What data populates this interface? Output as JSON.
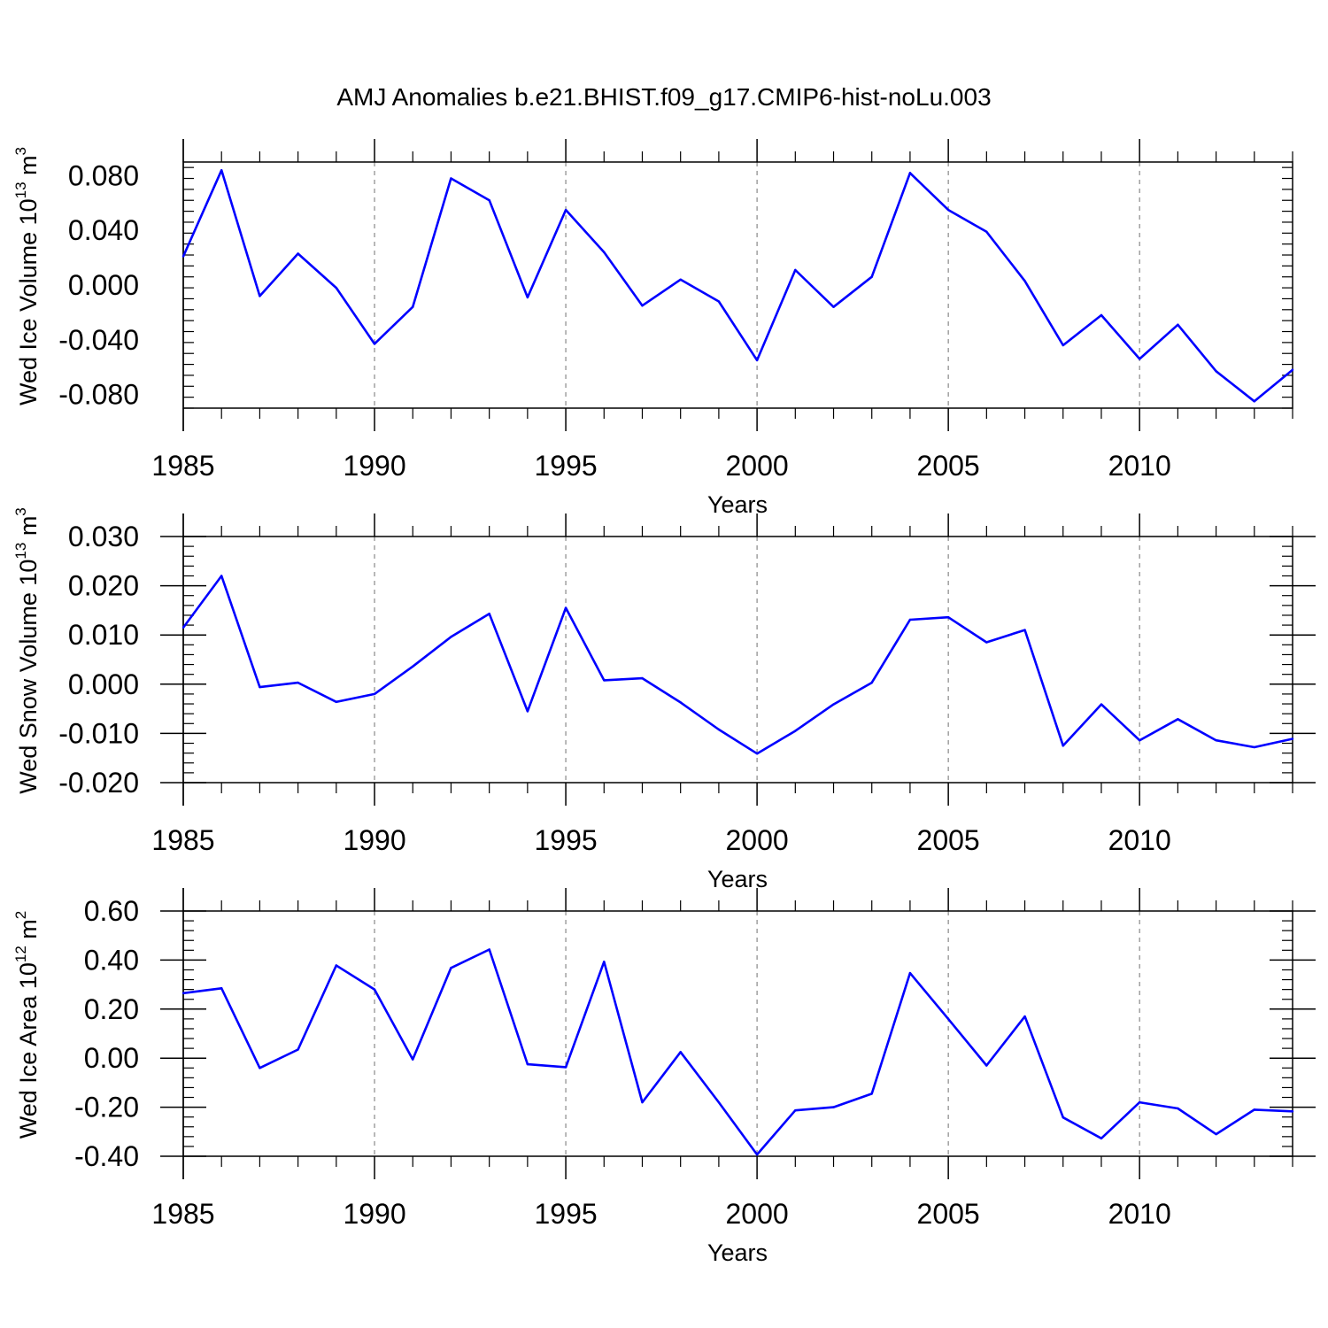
{
  "title": "AMJ Anomalies b.e21.BHIST.f09_g17.CMIP6-hist-noLu.003",
  "line_color": "#0000ff",
  "chart_data": [
    {
      "type": "line",
      "title": "AMJ Anomalies b.e21.BHIST.f09_g17.CMIP6-hist-noLu.003",
      "xlabel": "Years",
      "ylabel": {
        "main": "Wed Ice Volume 10",
        "exp": "13",
        "unit": " m",
        "unit_exp": "3"
      },
      "xlim": [
        1985,
        2014
      ],
      "ylim": [
        -0.09,
        0.09
      ],
      "yticks": [
        0.08,
        0.04,
        0.0,
        -0.04,
        -0.08
      ],
      "ytick_labels": [
        "0.080",
        "0.040",
        "0.000",
        "-0.040",
        "-0.080"
      ],
      "xticks": [
        1985,
        1990,
        1995,
        2000,
        2005,
        2010
      ],
      "xtick_labels": [
        "1985",
        "1990",
        "1995",
        "2000",
        "2005",
        "2010"
      ],
      "grid": "vertical dashed at major years",
      "x": [
        1985,
        1986,
        1987,
        1988,
        1989,
        1990,
        1991,
        1992,
        1993,
        1994,
        1995,
        1996,
        1997,
        1998,
        1999,
        2000,
        2001,
        2002,
        2003,
        2004,
        2005,
        2006,
        2007,
        2008,
        2009,
        2010,
        2011,
        2012,
        2013,
        2014
      ],
      "series": [
        {
          "values": [
            0.021,
            0.084,
            -0.008,
            0.023,
            -0.002,
            -0.043,
            -0.016,
            0.078,
            0.062,
            -0.009,
            0.055,
            0.024,
            -0.015,
            0.004,
            -0.012,
            -0.055,
            0.011,
            -0.016,
            0.006,
            0.082,
            0.055,
            0.039,
            0.003,
            -0.044,
            -0.022,
            -0.054,
            -0.029,
            -0.063,
            -0.085,
            -0.062
          ]
        }
      ]
    },
    {
      "type": "line",
      "xlabel": "Years",
      "ylabel": {
        "main": "Wed Snow Volume 10",
        "exp": "13",
        "unit": " m",
        "unit_exp": "3"
      },
      "xlim": [
        1985,
        2014
      ],
      "ylim": [
        -0.02,
        0.03
      ],
      "yticks": [
        0.03,
        0.02,
        0.01,
        0.0,
        -0.01,
        -0.02
      ],
      "ytick_labels": [
        "0.030",
        "0.020",
        "0.010",
        "0.000",
        "-0.010",
        "-0.020"
      ],
      "xticks": [
        1985,
        1990,
        1995,
        2000,
        2005,
        2010
      ],
      "xtick_labels": [
        "1985",
        "1990",
        "1995",
        "2000",
        "2005",
        "2010"
      ],
      "grid": "vertical dashed at major years",
      "x": [
        1985,
        1986,
        1987,
        1988,
        1989,
        1990,
        1991,
        1992,
        1993,
        1994,
        1995,
        1996,
        1997,
        1998,
        1999,
        2000,
        2001,
        2002,
        2003,
        2004,
        2005,
        2006,
        2007,
        2008,
        2009,
        2010,
        2011,
        2012,
        2013,
        2014
      ],
      "series": [
        {
          "values": [
            0.0115,
            0.022,
            -0.0006,
            0.0003,
            -0.0036,
            -0.002,
            0.0036,
            0.0096,
            0.0143,
            -0.0055,
            0.0155,
            0.0008,
            0.0012,
            -0.0037,
            -0.0092,
            -0.0141,
            -0.0095,
            -0.0041,
            0.0003,
            0.0131,
            0.0136,
            0.0085,
            0.011,
            -0.0125,
            -0.0041,
            -0.0114,
            -0.0071,
            -0.0114,
            -0.0128,
            -0.0111
          ]
        }
      ]
    },
    {
      "type": "line",
      "xlabel": "Years",
      "ylabel": {
        "main": "Wed Ice Area 10",
        "exp": "12",
        "unit": " m",
        "unit_exp": "2"
      },
      "xlim": [
        1985,
        2014
      ],
      "ylim": [
        -0.4,
        0.6
      ],
      "yticks": [
        0.6,
        0.4,
        0.2,
        0.0,
        -0.2,
        -0.4
      ],
      "ytick_labels": [
        "0.60",
        "0.40",
        "0.20",
        "0.00",
        "-0.20",
        "-0.40"
      ],
      "xticks": [
        1985,
        1990,
        1995,
        2000,
        2005,
        2010
      ],
      "xtick_labels": [
        "1985",
        "1990",
        "1995",
        "2000",
        "2005",
        "2010"
      ],
      "grid": "vertical dashed at major years",
      "x": [
        1985,
        1986,
        1987,
        1988,
        1989,
        1990,
        1991,
        1992,
        1993,
        1994,
        1995,
        1996,
        1997,
        1998,
        1999,
        2000,
        2001,
        2002,
        2003,
        2004,
        2005,
        2006,
        2007,
        2008,
        2009,
        2010,
        2011,
        2012,
        2013,
        2014
      ],
      "series": [
        {
          "values": [
            0.265,
            0.285,
            -0.04,
            0.035,
            0.378,
            0.28,
            -0.005,
            0.368,
            0.443,
            -0.025,
            -0.037,
            0.393,
            -0.18,
            0.025,
            -0.18,
            -0.393,
            -0.213,
            -0.2,
            -0.145,
            0.347,
            0.16,
            -0.03,
            0.17,
            -0.242,
            -0.327,
            -0.18,
            -0.205,
            -0.31,
            -0.21,
            -0.217
          ]
        }
      ]
    }
  ]
}
